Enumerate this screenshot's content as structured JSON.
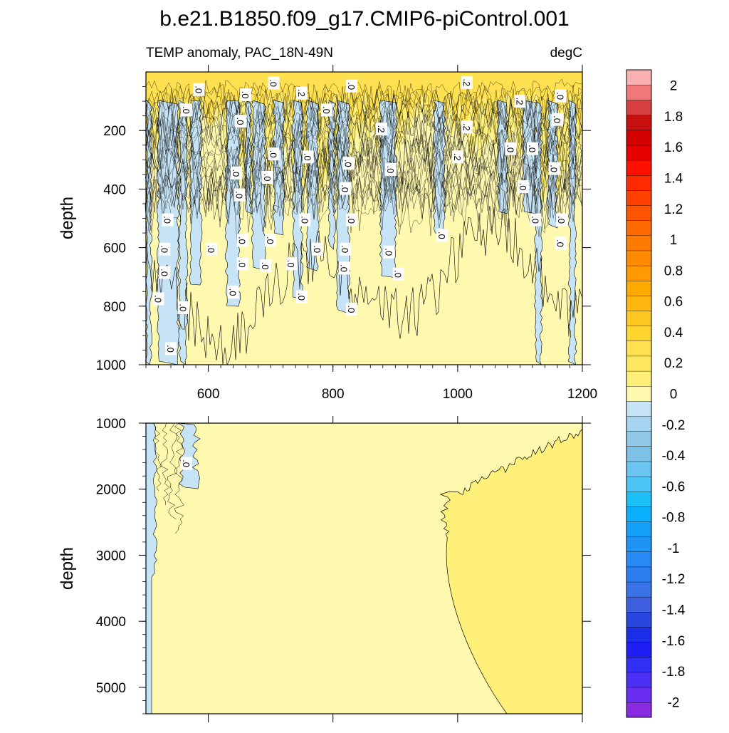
{
  "title": "b.e21.B1850.f09_g17.CMIP6-piControl.001",
  "colors": {
    "warm_light": "#fff9b0",
    "warm_mid": "#fff07a",
    "warm_strong": "#ffe050",
    "cool_light": "#c6e4f5",
    "cool_mid": "#a6d4ee",
    "contour_line": "#000000"
  },
  "chart_data": [
    {
      "type": "heatmap",
      "panel": "upper",
      "subtitle_left": "TEMP anomaly, PAC_18N-49N",
      "subtitle_right": "degC",
      "ylabel": "depth",
      "xlim": [
        500,
        1200
      ],
      "ylim": [
        0,
        1000
      ],
      "y_inverted": true,
      "x_ticks": [
        600,
        800,
        1000,
        1200
      ],
      "x_tick_labels": [
        "600",
        "800",
        "1000",
        "1200"
      ],
      "y_ticks": [
        200,
        400,
        600,
        800,
        1000
      ],
      "y_tick_labels": [
        "200",
        "400",
        "600",
        "800",
        "1000"
      ],
      "contour_labels": [
        {
          "text": ".0",
          "x": 585,
          "y": 60
        },
        {
          "text": ".0",
          "x": 660,
          "y": 78
        },
        {
          "text": ".0",
          "x": 705,
          "y": 38
        },
        {
          "text": ".2",
          "x": 750,
          "y": 72
        },
        {
          "text": ".0",
          "x": 830,
          "y": 48
        },
        {
          "text": ".2",
          "x": 1015,
          "y": 36
        },
        {
          "text": ".2",
          "x": 1100,
          "y": 100
        },
        {
          "text": ".0",
          "x": 1165,
          "y": 82
        },
        {
          "text": ".0",
          "x": 565,
          "y": 130
        },
        {
          "text": ".0",
          "x": 652,
          "y": 168
        },
        {
          "text": ".0",
          "x": 790,
          "y": 130
        },
        {
          "text": ".2",
          "x": 878,
          "y": 195
        },
        {
          "text": ".2",
          "x": 1015,
          "y": 188
        },
        {
          "text": ".0",
          "x": 1160,
          "y": 162
        },
        {
          "text": ".0",
          "x": 1085,
          "y": 262
        },
        {
          "text": ".0",
          "x": 1120,
          "y": 262
        },
        {
          "text": ".0",
          "x": 705,
          "y": 280
        },
        {
          "text": ".0",
          "x": 760,
          "y": 290
        },
        {
          "text": ".2",
          "x": 1000,
          "y": 290
        },
        {
          "text": ".0",
          "x": 825,
          "y": 312
        },
        {
          "text": ".0",
          "x": 645,
          "y": 345
        },
        {
          "text": ".0",
          "x": 695,
          "y": 360
        },
        {
          "text": ".0",
          "x": 893,
          "y": 333
        },
        {
          "text": ".0",
          "x": 1155,
          "y": 330
        },
        {
          "text": ".0",
          "x": 1105,
          "y": 392
        },
        {
          "text": ".0",
          "x": 820,
          "y": 398
        },
        {
          "text": ".0",
          "x": 650,
          "y": 420
        },
        {
          "text": ".0",
          "x": 535,
          "y": 505
        },
        {
          "text": ".0",
          "x": 755,
          "y": 505
        },
        {
          "text": ".0",
          "x": 830,
          "y": 505
        },
        {
          "text": ".0",
          "x": 1125,
          "y": 505
        },
        {
          "text": ".0",
          "x": 1167,
          "y": 505
        },
        {
          "text": ".0",
          "x": 975,
          "y": 558
        },
        {
          "text": ".0",
          "x": 655,
          "y": 575
        },
        {
          "text": ".0",
          "x": 700,
          "y": 575
        },
        {
          "text": ".0",
          "x": 1165,
          "y": 585
        },
        {
          "text": ".0",
          "x": 530,
          "y": 605
        },
        {
          "text": ".0",
          "x": 605,
          "y": 605
        },
        {
          "text": ".0",
          "x": 775,
          "y": 605
        },
        {
          "text": ".0",
          "x": 820,
          "y": 605
        },
        {
          "text": ".0",
          "x": 890,
          "y": 615
        },
        {
          "text": ".0",
          "x": 655,
          "y": 655
        },
        {
          "text": ".0",
          "x": 733,
          "y": 655
        },
        {
          "text": ".0",
          "x": 692,
          "y": 662
        },
        {
          "text": ".0",
          "x": 818,
          "y": 670
        },
        {
          "text": ".0",
          "x": 530,
          "y": 685
        },
        {
          "text": ".0",
          "x": 905,
          "y": 690
        },
        {
          "text": ".0",
          "x": 640,
          "y": 752
        },
        {
          "text": ".0",
          "x": 520,
          "y": 775
        },
        {
          "text": ".0",
          "x": 750,
          "y": 768
        },
        {
          "text": ".0",
          "x": 560,
          "y": 805
        },
        {
          "text": ".0",
          "x": 830,
          "y": 810
        },
        {
          "text": ".0",
          "x": 540,
          "y": 945
        }
      ]
    },
    {
      "type": "heatmap",
      "panel": "lower",
      "ylabel": "depth",
      "xlim": [
        500,
        1200
      ],
      "ylim": [
        1000,
        5400
      ],
      "y_inverted": true,
      "y_ticks": [
        1000,
        2000,
        3000,
        4000,
        5000
      ],
      "y_tick_labels": [
        "1000",
        "2000",
        "3000",
        "4000",
        "5000"
      ],
      "contour_labels": [
        {
          "text": ".0",
          "x": 565,
          "y": 1610
        }
      ]
    },
    {
      "type": "colorbar",
      "levels": [
        -2.1,
        -2,
        -1.9,
        -1.8,
        -1.7,
        -1.6,
        -1.5,
        -1.4,
        -1.3,
        -1.2,
        -1.1,
        -1,
        -0.9,
        -0.8,
        -0.7,
        -0.6,
        -0.5,
        -0.4,
        -0.3,
        -0.2,
        -0.1,
        0,
        0.1,
        0.2,
        0.3,
        0.4,
        0.5,
        0.6,
        0.7,
        0.8,
        0.9,
        1,
        1.1,
        1.2,
        1.3,
        1.4,
        1.5,
        1.6,
        1.7,
        1.8,
        1.9,
        2,
        2.1
      ],
      "colors_low_to_high": [
        "#8a2be2",
        "#6a2ef0",
        "#4b2ff5",
        "#3030f5",
        "#1e1ef5",
        "#1a2ee8",
        "#2a46e0",
        "#3d5fe0",
        "#3a72e8",
        "#2b7df0",
        "#2a8af5",
        "#1e95f5",
        "#14a0f8",
        "#0ab0fb",
        "#1cc0f8",
        "#4ec6f5",
        "#6ac6f0",
        "#7fc2e8",
        "#91c8ea",
        "#a6d4ee",
        "#c6e4f5",
        "#fff9b0",
        "#fff07a",
        "#ffe860",
        "#ffe050",
        "#ffd530",
        "#ffc820",
        "#ffb810",
        "#ffaa00",
        "#ff9a00",
        "#ff8a00",
        "#ff7a00",
        "#ff6a00",
        "#ff5500",
        "#ff4000",
        "#ff2a00",
        "#ff1000",
        "#e80000",
        "#d40000",
        "#c81010",
        "#d84040",
        "#f07878",
        "#f8b0b0"
      ],
      "tick_values": [
        2,
        1.8,
        1.6,
        1.4,
        1.2,
        1,
        0.8,
        0.6,
        0.4,
        0.2,
        0,
        -0.2,
        -0.4,
        -0.6,
        -0.8,
        -1,
        -1.2,
        -1.4,
        -1.6,
        -1.8,
        -2
      ],
      "tick_labels": [
        "2",
        "1.8",
        "1.6",
        "1.4",
        "1.2",
        "1",
        "0.8",
        "0.6",
        "0.4",
        "0.2",
        "0",
        "-0.2",
        "-0.4",
        "-0.6",
        "-0.8",
        "-1",
        "-1.2",
        "-1.4",
        "-1.6",
        "-1.8",
        "-2"
      ]
    }
  ]
}
